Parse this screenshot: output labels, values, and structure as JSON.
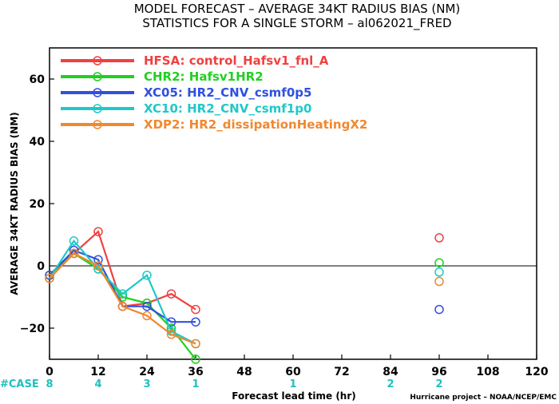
{
  "header": {
    "title_line1": "MODEL FORECAST – AVERAGE 34KT RADIUS BIAS (NM)",
    "title_line2": "STATISTICS FOR A SINGLE STORM – al062021_FRED"
  },
  "case_label": "#CASE",
  "credit": "Hurricane project – NOAA/NCEP/EMC",
  "colors": {
    "HFSA": "#f04040",
    "CHR2": "#20d020",
    "XC05": "#3050e0",
    "XC10": "#20c8c8",
    "XDP2": "#f08830",
    "case": "#20c0c0"
  },
  "chart_data": {
    "type": "line",
    "title": "MODEL FORECAST – AVERAGE 34KT RADIUS BIAS (NM)",
    "subtitle": "STATISTICS FOR A SINGLE STORM – al062021_FRED",
    "xlabel": "Forecast lead time (hr)",
    "ylabel": "AVERAGE 34KT RADIUS BIAS (NM)",
    "xlim": [
      0,
      120
    ],
    "ylim": [
      -30,
      70
    ],
    "xticks": [
      0,
      12,
      24,
      36,
      48,
      60,
      72,
      84,
      96,
      108,
      120
    ],
    "yticks": [
      -20,
      0,
      20,
      40,
      60
    ],
    "grid": false,
    "legend_position": "top-left",
    "cases": [
      {
        "x": 0,
        "n": "8"
      },
      {
        "x": 12,
        "n": "4"
      },
      {
        "x": 24,
        "n": "3"
      },
      {
        "x": 36,
        "n": "1"
      },
      {
        "x": 60,
        "n": "1"
      },
      {
        "x": 84,
        "n": "2"
      },
      {
        "x": 96,
        "n": "2"
      }
    ],
    "series": [
      {
        "key": "HFSA",
        "name": "HFSA: control_Hafsv1_fnl_A",
        "line": [
          [
            0,
            -4
          ],
          [
            6,
            4
          ],
          [
            12,
            11
          ],
          [
            18,
            -13
          ],
          [
            24,
            -12
          ],
          [
            30,
            -9
          ],
          [
            36,
            -14
          ]
        ],
        "isolated": [
          [
            96,
            9
          ]
        ]
      },
      {
        "key": "CHR2",
        "name": "CHR2: Hafsv1HR2",
        "line": [
          [
            0,
            -3
          ],
          [
            6,
            4
          ],
          [
            12,
            -1
          ],
          [
            18,
            -10
          ],
          [
            24,
            -12
          ],
          [
            30,
            -20
          ],
          [
            36,
            -30
          ]
        ],
        "isolated": [
          [
            96,
            1
          ]
        ]
      },
      {
        "key": "XC05",
        "name": "XC05: HR2_CNV_csmf0p5",
        "line": [
          [
            0,
            -3
          ],
          [
            6,
            5
          ],
          [
            12,
            2
          ],
          [
            18,
            -13
          ],
          [
            24,
            -13
          ],
          [
            30,
            -18
          ],
          [
            36,
            -18
          ]
        ],
        "isolated": [
          [
            96,
            -14
          ]
        ]
      },
      {
        "key": "XC10",
        "name": "XC10: HR2_CNV_csmf1p0",
        "line": [
          [
            0,
            -4
          ],
          [
            6,
            8
          ],
          [
            12,
            -1
          ],
          [
            18,
            -9
          ],
          [
            24,
            -3
          ],
          [
            30,
            -21
          ],
          [
            36,
            -25
          ]
        ],
        "isolated": [
          [
            96,
            -2
          ]
        ]
      },
      {
        "key": "XDP2",
        "name": "XDP2: HR2_dissipationHeatingX2",
        "line": [
          [
            0,
            -4
          ],
          [
            6,
            4
          ],
          [
            12,
            0
          ],
          [
            18,
            -13
          ],
          [
            24,
            -16
          ],
          [
            30,
            -22
          ],
          [
            36,
            -25
          ]
        ],
        "isolated": [
          [
            96,
            -5
          ]
        ]
      }
    ]
  }
}
